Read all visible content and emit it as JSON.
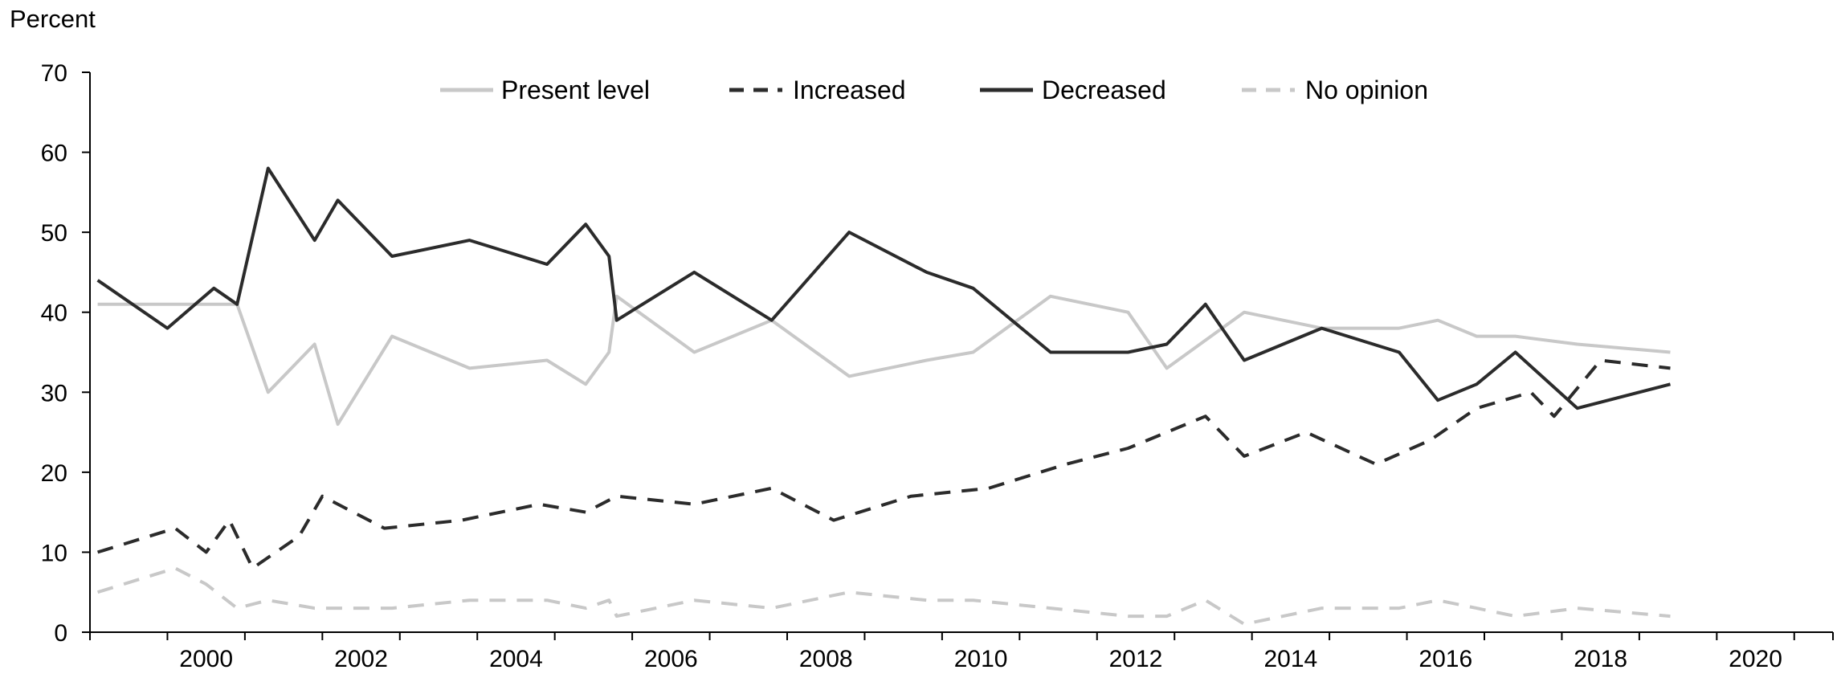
{
  "chart_data": {
    "type": "line",
    "title": "",
    "ylabel": "Percent",
    "xlabel": "",
    "ylim": [
      0,
      70
    ],
    "xlim": [
      1999.0,
      2021.5
    ],
    "yticks": [
      0,
      10,
      20,
      30,
      40,
      50,
      60,
      70
    ],
    "xtick_labels": [
      "2000",
      "2002",
      "2004",
      "2006",
      "2008",
      "2010",
      "2012",
      "2014",
      "2016",
      "2018",
      "2020"
    ],
    "xtick_values": [
      2000,
      2002,
      2004,
      2006,
      2008,
      2010,
      2012,
      2014,
      2016,
      2018,
      2020
    ],
    "legend_position": "top",
    "grid": false,
    "series": [
      {
        "name": "Present level",
        "color": "#c8c8c8",
        "dash": "solid",
        "points": [
          [
            1999.1,
            41
          ],
          [
            2000.0,
            41
          ],
          [
            2000.7,
            41
          ],
          [
            2000.9,
            41
          ],
          [
            2001.3,
            30
          ],
          [
            2001.9,
            36
          ],
          [
            2002.2,
            26
          ],
          [
            2002.9,
            37
          ],
          [
            2003.9,
            33
          ],
          [
            2004.9,
            34
          ],
          [
            2005.4,
            31
          ],
          [
            2005.7,
            35
          ],
          [
            2005.8,
            42
          ],
          [
            2006.8,
            35
          ],
          [
            2007.8,
            39
          ],
          [
            2008.8,
            32
          ],
          [
            2009.8,
            34
          ],
          [
            2010.4,
            35
          ],
          [
            2011.4,
            42
          ],
          [
            2012.4,
            40
          ],
          [
            2012.9,
            33
          ],
          [
            2013.9,
            40
          ],
          [
            2014.9,
            38
          ],
          [
            2015.9,
            38
          ],
          [
            2016.4,
            39
          ],
          [
            2016.9,
            37
          ],
          [
            2017.4,
            37
          ],
          [
            2018.2,
            36
          ],
          [
            2019.4,
            35
          ]
        ]
      },
      {
        "name": "Increased",
        "color": "#2b2b2b",
        "dash": "dashed",
        "points": [
          [
            1999.1,
            10
          ],
          [
            2000.1,
            13
          ],
          [
            2000.5,
            10
          ],
          [
            2000.8,
            14
          ],
          [
            2001.1,
            8
          ],
          [
            2001.7,
            12
          ],
          [
            2002.0,
            17
          ],
          [
            2002.8,
            13
          ],
          [
            2003.8,
            14
          ],
          [
            2004.8,
            16
          ],
          [
            2005.4,
            15
          ],
          [
            2005.8,
            17
          ],
          [
            2006.8,
            16
          ],
          [
            2007.8,
            18
          ],
          [
            2008.6,
            14
          ],
          [
            2009.6,
            17
          ],
          [
            2010.6,
            18
          ],
          [
            2011.6,
            21
          ],
          [
            2012.4,
            23
          ],
          [
            2013.4,
            27
          ],
          [
            2013.9,
            22
          ],
          [
            2014.7,
            25
          ],
          [
            2015.6,
            21
          ],
          [
            2016.3,
            24
          ],
          [
            2016.9,
            28
          ],
          [
            2017.6,
            30
          ],
          [
            2017.9,
            27
          ],
          [
            2018.5,
            34
          ],
          [
            2019.4,
            33
          ]
        ]
      },
      {
        "name": "Decreased",
        "color": "#2b2b2b",
        "dash": "solid",
        "points": [
          [
            1999.1,
            44
          ],
          [
            2000.0,
            38
          ],
          [
            2000.6,
            43
          ],
          [
            2000.9,
            41
          ],
          [
            2001.3,
            58
          ],
          [
            2001.9,
            49
          ],
          [
            2002.2,
            54
          ],
          [
            2002.9,
            47
          ],
          [
            2003.9,
            49
          ],
          [
            2004.9,
            46
          ],
          [
            2005.4,
            51
          ],
          [
            2005.7,
            47
          ],
          [
            2005.8,
            39
          ],
          [
            2006.8,
            45
          ],
          [
            2007.8,
            39
          ],
          [
            2008.8,
            50
          ],
          [
            2009.8,
            45
          ],
          [
            2010.4,
            43
          ],
          [
            2011.4,
            35
          ],
          [
            2012.4,
            35
          ],
          [
            2012.9,
            36
          ],
          [
            2013.4,
            41
          ],
          [
            2013.9,
            34
          ],
          [
            2014.9,
            38
          ],
          [
            2015.9,
            35
          ],
          [
            2016.4,
            29
          ],
          [
            2016.9,
            31
          ],
          [
            2017.4,
            35
          ],
          [
            2018.2,
            28
          ],
          [
            2019.4,
            31
          ]
        ]
      },
      {
        "name": "No opinion",
        "color": "#c8c8c8",
        "dash": "dashed",
        "points": [
          [
            1999.1,
            5
          ],
          [
            2000.1,
            8
          ],
          [
            2000.5,
            6
          ],
          [
            2000.9,
            3
          ],
          [
            2001.3,
            4
          ],
          [
            2001.9,
            3
          ],
          [
            2002.9,
            3
          ],
          [
            2003.9,
            4
          ],
          [
            2004.9,
            4
          ],
          [
            2005.4,
            3
          ],
          [
            2005.7,
            4
          ],
          [
            2005.8,
            2
          ],
          [
            2006.8,
            4
          ],
          [
            2007.8,
            3
          ],
          [
            2008.8,
            5
          ],
          [
            2009.8,
            4
          ],
          [
            2010.4,
            4
          ],
          [
            2011.4,
            3
          ],
          [
            2012.4,
            2
          ],
          [
            2012.9,
            2
          ],
          [
            2013.4,
            4
          ],
          [
            2013.9,
            1
          ],
          [
            2014.9,
            3
          ],
          [
            2015.9,
            3
          ],
          [
            2016.4,
            4
          ],
          [
            2016.9,
            3
          ],
          [
            2017.4,
            2
          ],
          [
            2018.2,
            3
          ],
          [
            2019.4,
            2
          ]
        ]
      }
    ]
  }
}
